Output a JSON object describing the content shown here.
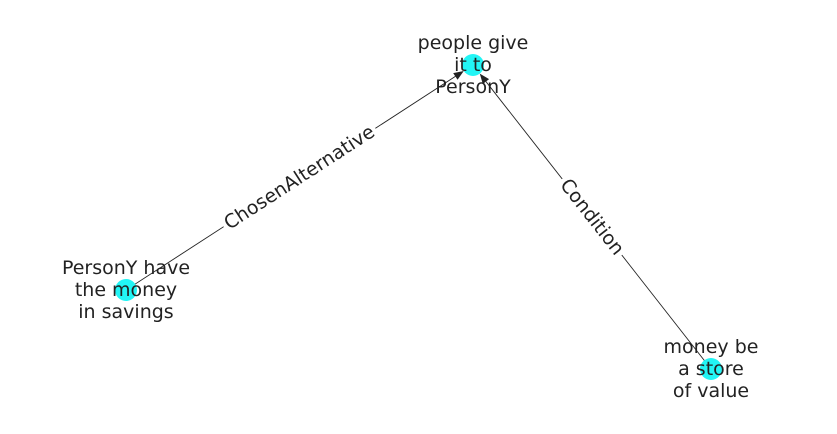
{
  "graph": {
    "node_color": "#22f5f5",
    "edge_color": "#222222",
    "nodes": [
      {
        "id": "people_give",
        "lines": [
          "people give",
          "it to",
          "PersonY"
        ]
      },
      {
        "id": "persony_money",
        "lines": [
          "PersonY have",
          "the money",
          "in savings"
        ]
      },
      {
        "id": "money_store",
        "lines": [
          "money be",
          "a store",
          "of value"
        ]
      }
    ],
    "edges": [
      {
        "source": "persony_money",
        "target": "people_give",
        "label": "ChosenAlternative"
      },
      {
        "source": "money_store",
        "target": "people_give",
        "label": "Condition"
      }
    ]
  }
}
